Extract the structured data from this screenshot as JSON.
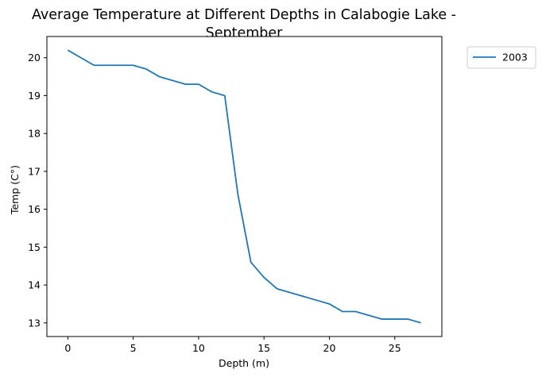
{
  "chart_data": {
    "type": "line",
    "title": "Average Temperature at Different Depths in Calabogie Lake -\nSeptember",
    "xlabel": "Depth (m)",
    "ylabel": "Temp (C°)",
    "xlim": [
      -1.6,
      28.6
    ],
    "ylim": [
      12.64,
      20.56
    ],
    "xticks": [
      0,
      5,
      10,
      15,
      20,
      25
    ],
    "yticks": [
      13,
      14,
      15,
      16,
      17,
      18,
      19,
      20
    ],
    "grid": false,
    "legend_position": "outside-top-right",
    "series": [
      {
        "name": "2003",
        "color": "#1f77b4",
        "x": [
          0,
          1,
          2,
          3,
          4,
          5,
          6,
          7,
          8,
          9,
          10,
          11,
          12,
          13,
          14,
          15,
          16,
          17,
          18,
          19,
          20,
          21,
          22,
          23,
          24,
          25,
          26,
          27
        ],
        "y": [
          20.2,
          20.0,
          19.8,
          19.8,
          19.8,
          19.8,
          19.7,
          19.5,
          19.4,
          19.3,
          19.3,
          19.1,
          19.0,
          16.4,
          14.6,
          14.2,
          13.9,
          13.8,
          13.7,
          13.6,
          13.5,
          13.3,
          13.3,
          13.2,
          13.1,
          13.1,
          13.1,
          13.0
        ]
      }
    ]
  }
}
